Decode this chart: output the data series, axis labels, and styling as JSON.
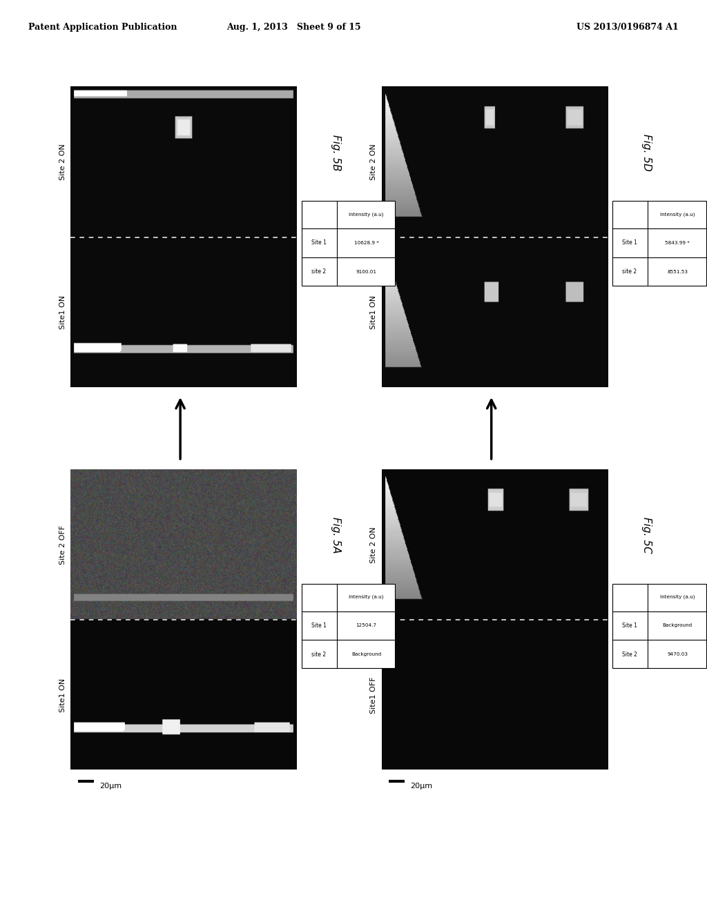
{
  "page_header_left": "Patent Application Publication",
  "page_header_center": "Aug. 1, 2013   Sheet 9 of 15",
  "page_header_right": "US 2013/0196874 A1",
  "fig_5B_label": "Fig. 5B",
  "fig_5D_label": "Fig. 5D",
  "fig_5A_label": "Fig. 5A",
  "fig_5C_label": "Fig. 5C",
  "site1_on": "Site1 ON",
  "site2_on": "Site 2 ON",
  "site2_off": "Site 2 OFF",
  "site1_off": "Site1 OFF",
  "intensity_label": "Intensity (a.u)",
  "table_5A_r1_lbl": "Site 1",
  "table_5A_r1_val": "12504.7",
  "table_5A_r2_lbl": "site 2",
  "table_5A_r2_val": "Background",
  "table_5B_r1_lbl": "Site 1",
  "table_5B_r1_val": "10628.9",
  "table_5B_r1_star": "*",
  "table_5B_r2_lbl": "site 2",
  "table_5B_r2_val": "9100.01",
  "table_5C_r1_lbl": "Site 1",
  "table_5C_r1_val": "Background",
  "table_5C_r2_lbl": "Site 2",
  "table_5C_r2_val": "9470.03",
  "table_5D_r1_lbl": "Site 1",
  "table_5D_r1_val": "5843.99",
  "table_5D_r1_star": "*",
  "table_5D_r2_lbl": "site 2",
  "table_5D_r2_val": "8551.53",
  "scale_label": "20μm",
  "bg_color": "#ffffff"
}
